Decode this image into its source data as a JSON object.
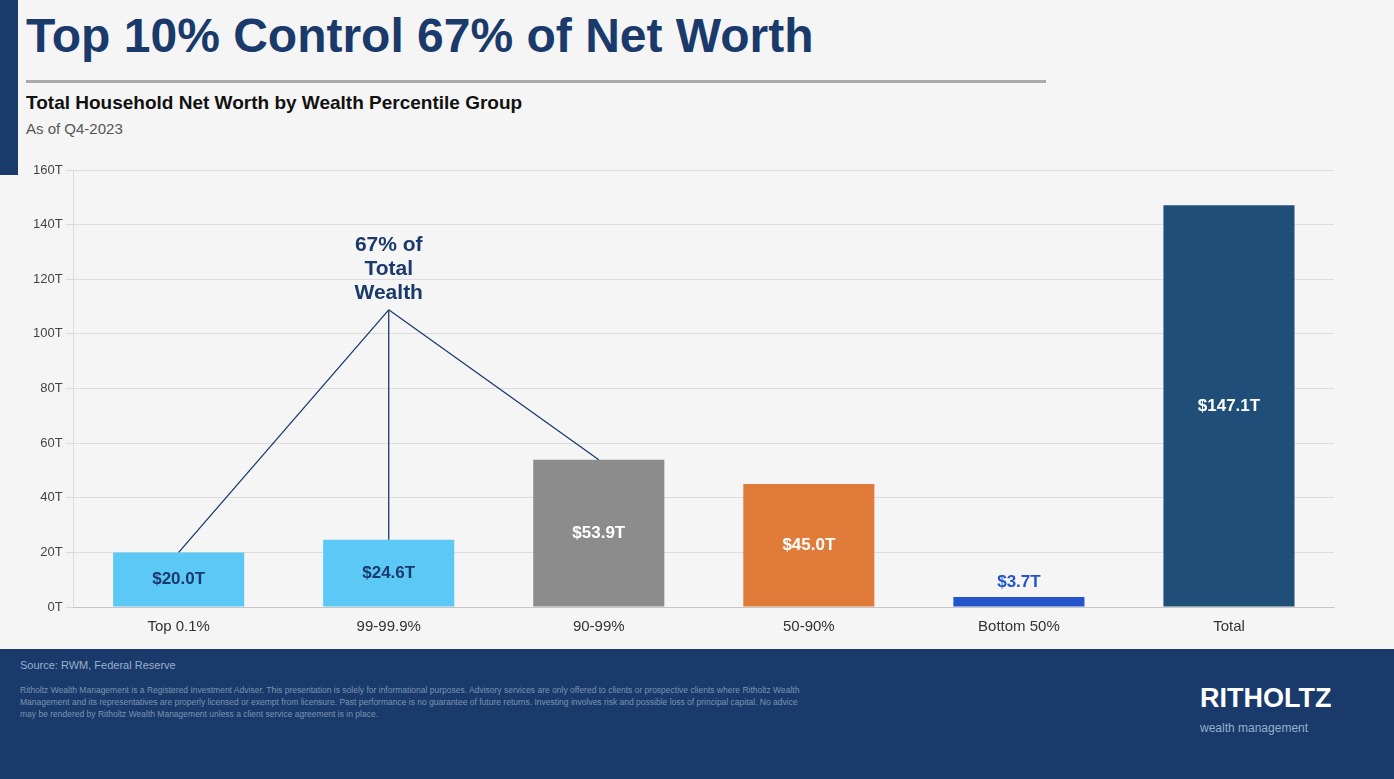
{
  "chart_data": {
    "type": "bar",
    "title": "Top 10% Control 67% of Net Worth",
    "subtitle": "Total Household Net Worth by Wealth Percentile Group",
    "subtitle2": "As of Q4-2023",
    "categories": [
      "Top 0.1%",
      "99-99.9%",
      "90-99%",
      "50-90%",
      "Bottom 50%",
      "Total"
    ],
    "values": [
      20.0,
      24.6,
      53.9,
      45.0,
      3.7,
      147.1
    ],
    "value_labels": [
      "$20.0T",
      "$24.6T",
      "$53.9T",
      "$45.0T",
      "$3.7T",
      "$147.1T"
    ],
    "data_labels": true,
    "colors": [
      "#5bc8f5",
      "#5bc8f5",
      "#8c8c8c",
      "#e07b39",
      "#2255cc",
      "#1f4e79"
    ],
    "ylim": [
      0,
      160
    ],
    "yticks": [
      {
        "value": 0,
        "label": "0T"
      },
      {
        "value": 20,
        "label": "20T"
      },
      {
        "value": 40,
        "label": "40T"
      },
      {
        "value": 60,
        "label": "60T"
      },
      {
        "value": 80,
        "label": "80T"
      },
      {
        "value": 100,
        "label": "100T"
      },
      {
        "value": 120,
        "label": "120T"
      },
      {
        "value": 140,
        "label": "140T"
      },
      {
        "value": 160,
        "label": "160T"
      }
    ],
    "grid": true,
    "annotations": [
      {
        "text": "67% of\nTotal\nWealth",
        "targets": [
          "Top 0.1%",
          "99-99.9%",
          "90-99%"
        ]
      }
    ],
    "source": "Source: RWM, Federal Reserve",
    "disclaimer": "Ritholtz Wealth Management is a Registered Investment Adviser. This presentation is solely for informational purposes. Advisory services are only offered to clients or prospective clients where Ritholtz Wealth\nManagement and its representatives are properly licensed or exempt from licensure. Past performance is no guarantee of future returns. Investing involves risk and possible loss of principal capital. No advice\nmay be rendered by Ritholtz Wealth Management unless a client service agreement is in place.",
    "brand": "RITHOLTZ",
    "brand_tagline": "wealth management"
  }
}
